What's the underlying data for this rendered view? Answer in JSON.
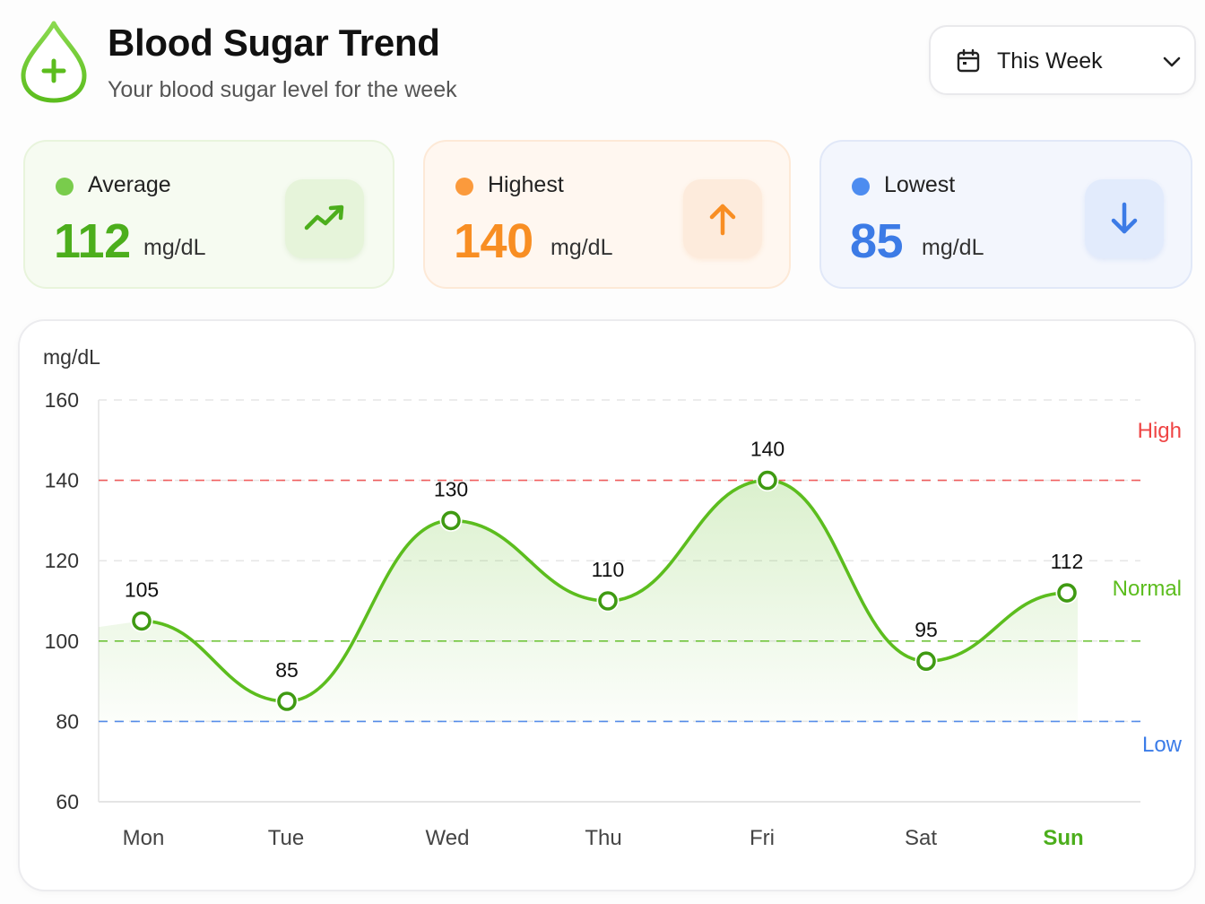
{
  "header": {
    "title": "Blood Sugar Trend",
    "subtitle": "Your blood sugar level for the week",
    "logo_icon": "blood-drop-plus-icon",
    "range_select": {
      "icon": "calendar-icon",
      "value": "This Week",
      "chevron": "chevron-down-icon"
    }
  },
  "stats": {
    "average": {
      "label": "Average",
      "value": "112",
      "unit": "mg/dL",
      "icon": "trend-up-icon",
      "color": "#4cae1c"
    },
    "highest": {
      "label": "Highest",
      "value": "140",
      "unit": "mg/dL",
      "icon": "arrow-up-icon",
      "color": "#f88e23"
    },
    "lowest": {
      "label": "Lowest",
      "value": "85",
      "unit": "mg/dL",
      "icon": "arrow-down-icon",
      "color": "#3c7be6"
    }
  },
  "chart_data": {
    "type": "line",
    "ylabel": "mg/dL",
    "categories": [
      "Mon",
      "Tue",
      "Wed",
      "Thu",
      "Fri",
      "Sat",
      "Sun"
    ],
    "highlighted_category": "Sun",
    "values": [
      105,
      85,
      130,
      110,
      140,
      95,
      112
    ],
    "data_labels": [
      "105",
      "85",
      "130",
      "110",
      "140",
      "95",
      "112"
    ],
    "ylim": [
      60,
      160
    ],
    "yticks": [
      160,
      140,
      120,
      100,
      80,
      60
    ],
    "grid": true,
    "line_color": "#5cbd1e",
    "reference_lines": [
      {
        "name": "High",
        "value": 140,
        "color": "#ef4444"
      },
      {
        "name": "Normal",
        "value": 100,
        "color": "#5cbd1e"
      },
      {
        "name": "Low",
        "value": 80,
        "color": "#3b7ce8"
      }
    ]
  }
}
